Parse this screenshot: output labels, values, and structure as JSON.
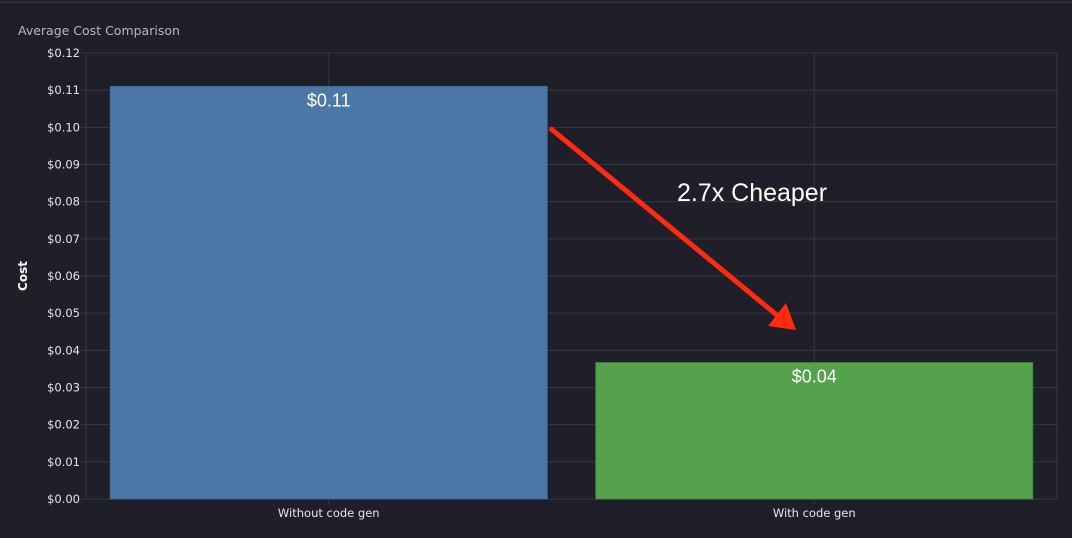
{
  "chart_data": {
    "type": "bar",
    "title": "Average Cost Comparison",
    "xlabel": "",
    "ylabel": "Cost",
    "ylim": [
      0,
      0.12
    ],
    "ytick_step": 0.01,
    "ytick_format": "currency",
    "grid": true,
    "categories": [
      "Without code gen",
      "With code gen"
    ],
    "values": [
      0.111,
      0.0367
    ],
    "data_labels": [
      "$0.11",
      "$0.04"
    ],
    "bar_colors": [
      "#4c78a8",
      "#54a24b"
    ],
    "annotation": {
      "text": "2.7x Cheaper",
      "arrow_color": "#ff2a10"
    }
  }
}
